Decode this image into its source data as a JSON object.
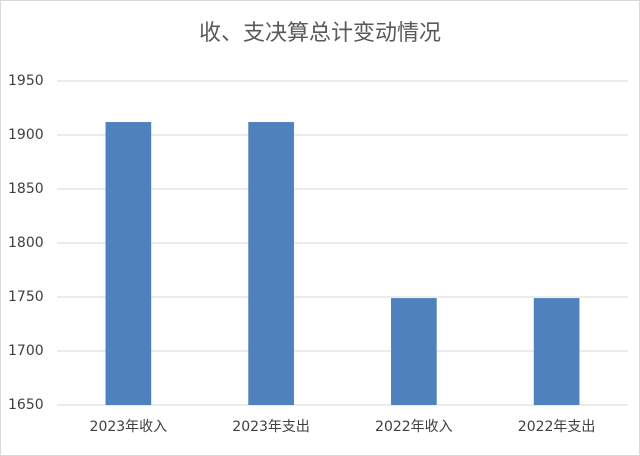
{
  "chart_data": {
    "type": "bar",
    "title": "收、支决算总计变动情况",
    "categories": [
      "2023年收入",
      "2023年支出",
      "2022年收入",
      "2022年支出"
    ],
    "values": [
      1912,
      1912,
      1749,
      1749
    ],
    "color": "#4f81bd",
    "ylim": [
      1650,
      1950
    ],
    "yticks": [
      1650,
      1700,
      1750,
      1800,
      1850,
      1900,
      1950
    ],
    "grid": true
  }
}
